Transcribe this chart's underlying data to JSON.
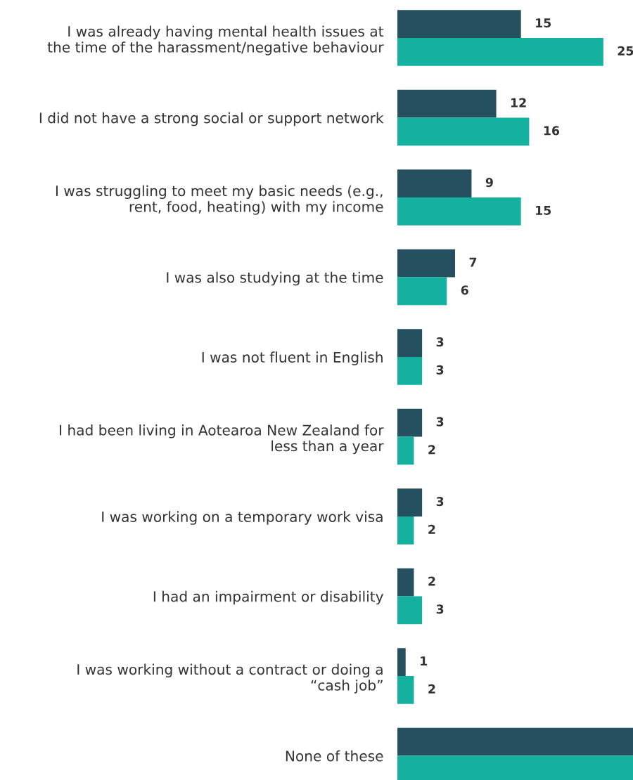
{
  "chart_data": {
    "type": "bar",
    "orientation": "horizontal",
    "categories": [
      "I was already having mental health issues at\nthe time of the harassment/negative behaviour",
      "I did not have a strong social or support network",
      "I was struggling to meet my basic needs (e.g.,\nrent, food, heating) with my income",
      "I was also studying at the time",
      "I was not fluent in English",
      "I had been living in Aotearoa New Zealand for\nless than a year",
      "I was working on a temporary work visa",
      "I had an impairment or disability",
      "I was working without a contract or doing a\n“cash job”",
      "None of these"
    ],
    "series": [
      {
        "color": "#24505f",
        "values": [
          15,
          12,
          9,
          7,
          3,
          3,
          3,
          2,
          1,
          28.6
        ],
        "value_labels": [
          "15",
          "12",
          "9",
          "7",
          "3",
          "3",
          "3",
          "2",
          "1",
          null
        ]
      },
      {
        "color": "#14b1a0",
        "values": [
          25,
          16,
          15,
          6,
          3,
          2,
          2,
          3,
          2,
          28.6
        ],
        "value_labels": [
          "25",
          "16",
          "15",
          "6",
          "3",
          "2",
          "2",
          "3",
          "2",
          null
        ]
      }
    ],
    "xlim": [
      0,
      28.6
    ],
    "tick_labels": "y",
    "grid": false,
    "legend": false
  }
}
